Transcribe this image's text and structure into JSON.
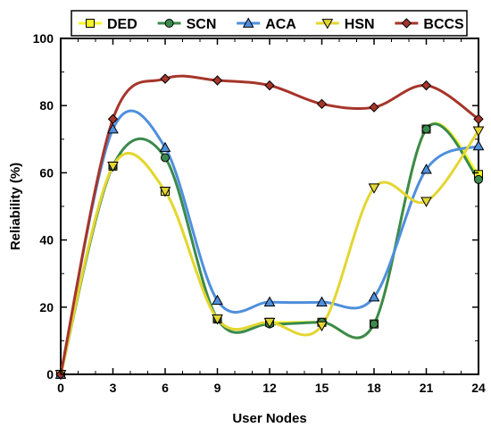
{
  "chart_data": {
    "type": "line",
    "title": "",
    "xlabel": "User Nodes",
    "ylabel": "Reliability (%)",
    "xlim": [
      0,
      24
    ],
    "ylim": [
      0,
      100
    ],
    "x_ticks": [
      0,
      3,
      6,
      9,
      12,
      15,
      18,
      21,
      24
    ],
    "y_ticks": [
      0,
      20,
      40,
      60,
      80,
      100
    ],
    "grid": false,
    "legend_position": "top",
    "x": [
      0,
      3,
      6,
      9,
      12,
      15,
      18,
      21,
      24
    ],
    "series": [
      {
        "name": "DED",
        "color": "#f5f52a",
        "marker": "square",
        "values": [
          0,
          62,
          54.5,
          16.5,
          15.5,
          15.5,
          15,
          73,
          59.5
        ]
      },
      {
        "name": "SCN",
        "color": "#3a8a4e",
        "marker": "circle",
        "values": [
          0,
          62,
          64.5,
          16.5,
          15,
          15.5,
          15,
          73,
          58
        ]
      },
      {
        "name": "ACA",
        "color": "#4f8fdc",
        "marker": "triangle-up",
        "values": [
          0,
          73,
          67.5,
          22,
          21.5,
          21.5,
          23,
          61,
          68
        ]
      },
      {
        "name": "HSN",
        "color": "#e3d632",
        "marker": "triangle-down",
        "values": [
          0,
          62,
          54.5,
          16.5,
          15.5,
          14.5,
          55.5,
          51.5,
          72.5
        ]
      },
      {
        "name": "BCCS",
        "color": "#a6352a",
        "marker": "diamond",
        "values": [
          0,
          76,
          88,
          87.5,
          86,
          80.5,
          79.5,
          86,
          76
        ]
      }
    ]
  }
}
